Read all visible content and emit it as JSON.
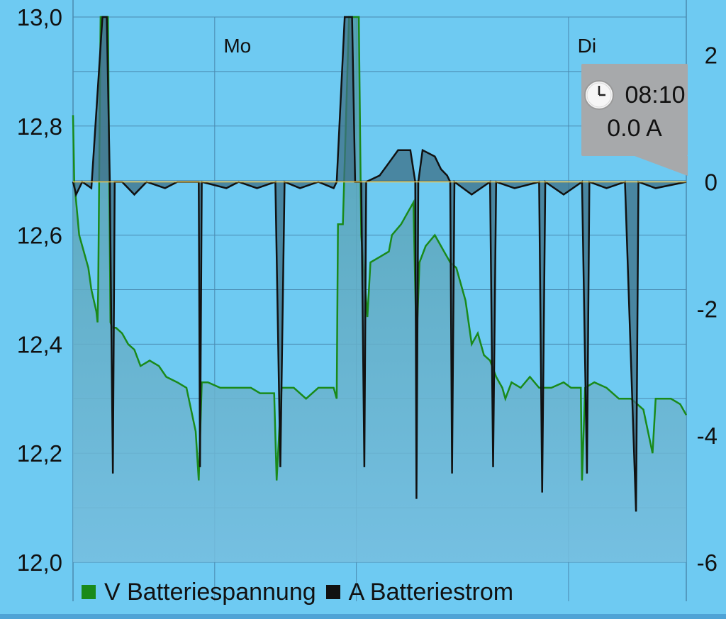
{
  "chart_data": {
    "type": "area",
    "x_labels": [
      {
        "label": "Mo",
        "position": 0.268
      },
      {
        "label": "Di",
        "position": 0.838
      }
    ],
    "y_left": {
      "label": "",
      "unit": "V",
      "lim": [
        12.0,
        13.0
      ],
      "ticks": [
        "13,0",
        "12,8",
        "12,6",
        "12,4",
        "12,2",
        "12,0"
      ]
    },
    "y_right": {
      "label": "",
      "unit": "A",
      "lim": [
        -6.0,
        2.6
      ],
      "ticks": [
        "2",
        "0",
        "-2",
        "-4",
        "-6"
      ]
    },
    "grid": true,
    "legend_placement": "bottom",
    "series": [
      {
        "name": "V Batteriespannung",
        "axis": "left",
        "color": "#1a8a1a",
        "fill": "#5aacba",
        "points": [
          [
            0.0,
            12.82
          ],
          [
            0.002,
            12.7
          ],
          [
            0.01,
            12.6
          ],
          [
            0.025,
            12.54
          ],
          [
            0.03,
            12.5
          ],
          [
            0.038,
            12.46
          ],
          [
            0.04,
            12.44
          ],
          [
            0.041,
            12.5
          ],
          [
            0.045,
            13.0
          ],
          [
            0.057,
            13.0
          ],
          [
            0.061,
            12.44
          ],
          [
            0.064,
            12.43
          ],
          [
            0.07,
            12.43
          ],
          [
            0.08,
            12.42
          ],
          [
            0.09,
            12.4
          ],
          [
            0.1,
            12.39
          ],
          [
            0.11,
            12.36
          ],
          [
            0.125,
            12.37
          ],
          [
            0.14,
            12.36
          ],
          [
            0.152,
            12.34
          ],
          [
            0.17,
            12.33
          ],
          [
            0.185,
            12.32
          ],
          [
            0.2,
            12.24
          ],
          [
            0.205,
            12.15
          ],
          [
            0.21,
            12.33
          ],
          [
            0.22,
            12.33
          ],
          [
            0.24,
            12.32
          ],
          [
            0.26,
            12.32
          ],
          [
            0.29,
            12.32
          ],
          [
            0.305,
            12.31
          ],
          [
            0.328,
            12.31
          ],
          [
            0.332,
            12.15
          ],
          [
            0.34,
            12.32
          ],
          [
            0.36,
            12.32
          ],
          [
            0.38,
            12.3
          ],
          [
            0.4,
            12.32
          ],
          [
            0.425,
            12.32
          ],
          [
            0.43,
            12.3
          ],
          [
            0.432,
            12.62
          ],
          [
            0.44,
            12.62
          ],
          [
            0.45,
            13.0
          ],
          [
            0.466,
            13.0
          ],
          [
            0.47,
            12.6
          ],
          [
            0.48,
            12.45
          ],
          [
            0.485,
            12.55
          ],
          [
            0.5,
            12.56
          ],
          [
            0.515,
            12.57
          ],
          [
            0.52,
            12.6
          ],
          [
            0.535,
            12.62
          ],
          [
            0.545,
            12.64
          ],
          [
            0.555,
            12.66
          ],
          [
            0.56,
            12.4
          ],
          [
            0.565,
            12.55
          ],
          [
            0.575,
            12.58
          ],
          [
            0.59,
            12.6
          ],
          [
            0.6,
            12.58
          ],
          [
            0.605,
            12.57
          ],
          [
            0.615,
            12.55
          ],
          [
            0.625,
            12.54
          ],
          [
            0.64,
            12.48
          ],
          [
            0.65,
            12.4
          ],
          [
            0.66,
            12.42
          ],
          [
            0.67,
            12.38
          ],
          [
            0.68,
            12.37
          ],
          [
            0.69,
            12.34
          ],
          [
            0.7,
            12.32
          ],
          [
            0.705,
            12.3
          ],
          [
            0.715,
            12.33
          ],
          [
            0.73,
            12.32
          ],
          [
            0.745,
            12.34
          ],
          [
            0.76,
            12.32
          ],
          [
            0.78,
            12.32
          ],
          [
            0.8,
            12.33
          ],
          [
            0.812,
            12.32
          ],
          [
            0.82,
            12.32
          ],
          [
            0.828,
            12.32
          ],
          [
            0.83,
            12.15
          ],
          [
            0.835,
            12.32
          ],
          [
            0.85,
            12.33
          ],
          [
            0.87,
            12.32
          ],
          [
            0.89,
            12.3
          ],
          [
            0.91,
            12.3
          ],
          [
            0.93,
            12.28
          ],
          [
            0.945,
            12.2
          ],
          [
            0.95,
            12.3
          ],
          [
            0.96,
            12.3
          ],
          [
            0.975,
            12.3
          ],
          [
            0.99,
            12.29
          ],
          [
            1.0,
            12.27
          ]
        ]
      },
      {
        "name": "A Batteriestrom",
        "axis": "right",
        "color": "#111111",
        "fill": "#3e6f86",
        "points": [
          [
            0.0,
            0.0
          ],
          [
            0.005,
            -0.2
          ],
          [
            0.015,
            0.0
          ],
          [
            0.03,
            -0.1
          ],
          [
            0.048,
            2.6
          ],
          [
            0.055,
            2.6
          ],
          [
            0.06,
            0.0
          ],
          [
            0.065,
            -4.6
          ],
          [
            0.068,
            0.0
          ],
          [
            0.08,
            0.0
          ],
          [
            0.1,
            -0.2
          ],
          [
            0.12,
            0.0
          ],
          [
            0.15,
            -0.1
          ],
          [
            0.17,
            0.0
          ],
          [
            0.205,
            0.0
          ],
          [
            0.207,
            -4.5
          ],
          [
            0.21,
            0.0
          ],
          [
            0.25,
            -0.1
          ],
          [
            0.27,
            0.0
          ],
          [
            0.3,
            -0.1
          ],
          [
            0.33,
            0.0
          ],
          [
            0.338,
            -4.5
          ],
          [
            0.345,
            0.0
          ],
          [
            0.37,
            -0.1
          ],
          [
            0.4,
            0.0
          ],
          [
            0.425,
            -0.1
          ],
          [
            0.43,
            0.0
          ],
          [
            0.443,
            2.6
          ],
          [
            0.455,
            2.6
          ],
          [
            0.46,
            0.0
          ],
          [
            0.47,
            0.0
          ],
          [
            0.475,
            -4.5
          ],
          [
            0.478,
            0.0
          ],
          [
            0.5,
            0.1
          ],
          [
            0.515,
            0.3
          ],
          [
            0.53,
            0.5
          ],
          [
            0.55,
            0.5
          ],
          [
            0.558,
            0.0
          ],
          [
            0.56,
            -5.0
          ],
          [
            0.563,
            0.0
          ],
          [
            0.57,
            0.5
          ],
          [
            0.59,
            0.4
          ],
          [
            0.6,
            0.2
          ],
          [
            0.61,
            0.1
          ],
          [
            0.615,
            0.0
          ],
          [
            0.618,
            -4.6
          ],
          [
            0.622,
            0.0
          ],
          [
            0.65,
            -0.2
          ],
          [
            0.68,
            0.0
          ],
          [
            0.685,
            -4.5
          ],
          [
            0.69,
            0.0
          ],
          [
            0.72,
            -0.1
          ],
          [
            0.76,
            0.0
          ],
          [
            0.765,
            -4.9
          ],
          [
            0.77,
            0.0
          ],
          [
            0.8,
            -0.2
          ],
          [
            0.83,
            0.0
          ],
          [
            0.838,
            -4.6
          ],
          [
            0.842,
            0.0
          ],
          [
            0.87,
            -0.1
          ],
          [
            0.9,
            0.0
          ],
          [
            0.918,
            -5.2
          ],
          [
            0.922,
            0.0
          ],
          [
            0.95,
            -0.1
          ],
          [
            1.0,
            0.0
          ]
        ]
      }
    ],
    "tooltip": {
      "time": "08:10",
      "value": "0.0 A"
    }
  },
  "legend": {
    "voltage": {
      "label": "V Batteriespannung",
      "color": "#1a8a1a"
    },
    "current": {
      "label": "A Batteriestrom",
      "color": "#111111"
    }
  },
  "colors": {
    "background": "#6ecaf2",
    "grid": "#4a8ab0",
    "zero_line": "#f0c64a"
  },
  "icons": {
    "tooltip_icon": "clock-icon"
  }
}
